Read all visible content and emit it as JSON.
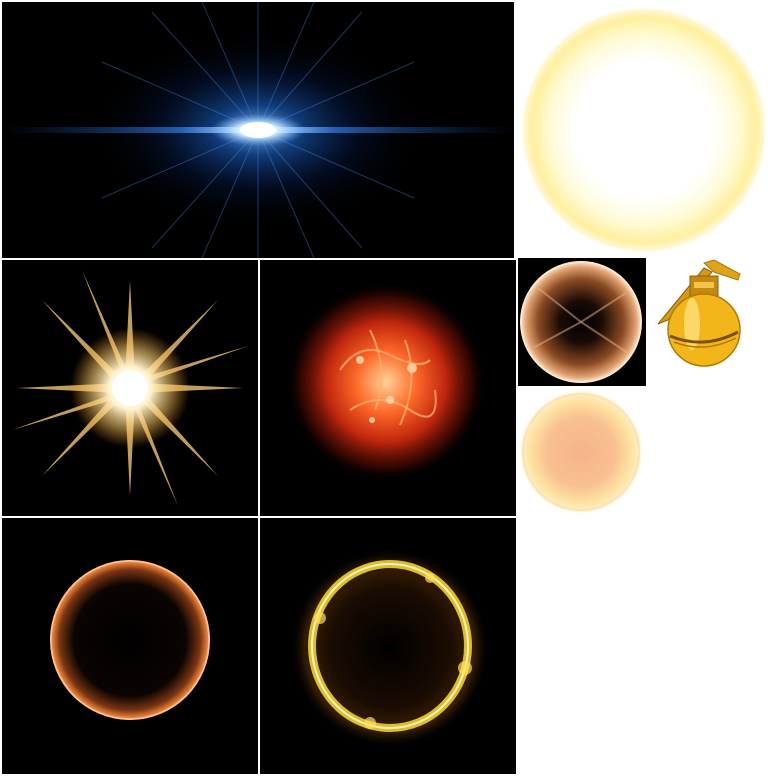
{
  "sheet": {
    "background": "#ffffff",
    "cell_background": "#000000",
    "sprites": [
      {
        "id": "lens-flare",
        "icon": "blue-lens-flare-icon"
      },
      {
        "id": "soft-glow",
        "icon": "yellow-glow-circle-icon"
      },
      {
        "id": "starburst",
        "icon": "starburst-icon"
      },
      {
        "id": "fireball",
        "icon": "fire-explosion-icon"
      },
      {
        "id": "energy-orb",
        "icon": "energy-orb-icon"
      },
      {
        "id": "grenade",
        "icon": "grenade-icon"
      },
      {
        "id": "peach-glow",
        "icon": "peach-glow-circle-icon"
      },
      {
        "id": "fire-ring",
        "icon": "fire-ring-icon"
      },
      {
        "id": "gold-ring",
        "icon": "gold-fire-ring-icon"
      }
    ]
  },
  "palette": {
    "lens_blue": "#3a8cff",
    "glow_yellow": "#fff3a8",
    "star_gold": "#ffd27a",
    "fire_red": "#e23a10",
    "orb_amber": "#c8772e",
    "grenade_yellow": "#f2b51a",
    "peach": "#f6b38c",
    "ring_orange": "#e8823a",
    "gold": "#ffd83a"
  }
}
